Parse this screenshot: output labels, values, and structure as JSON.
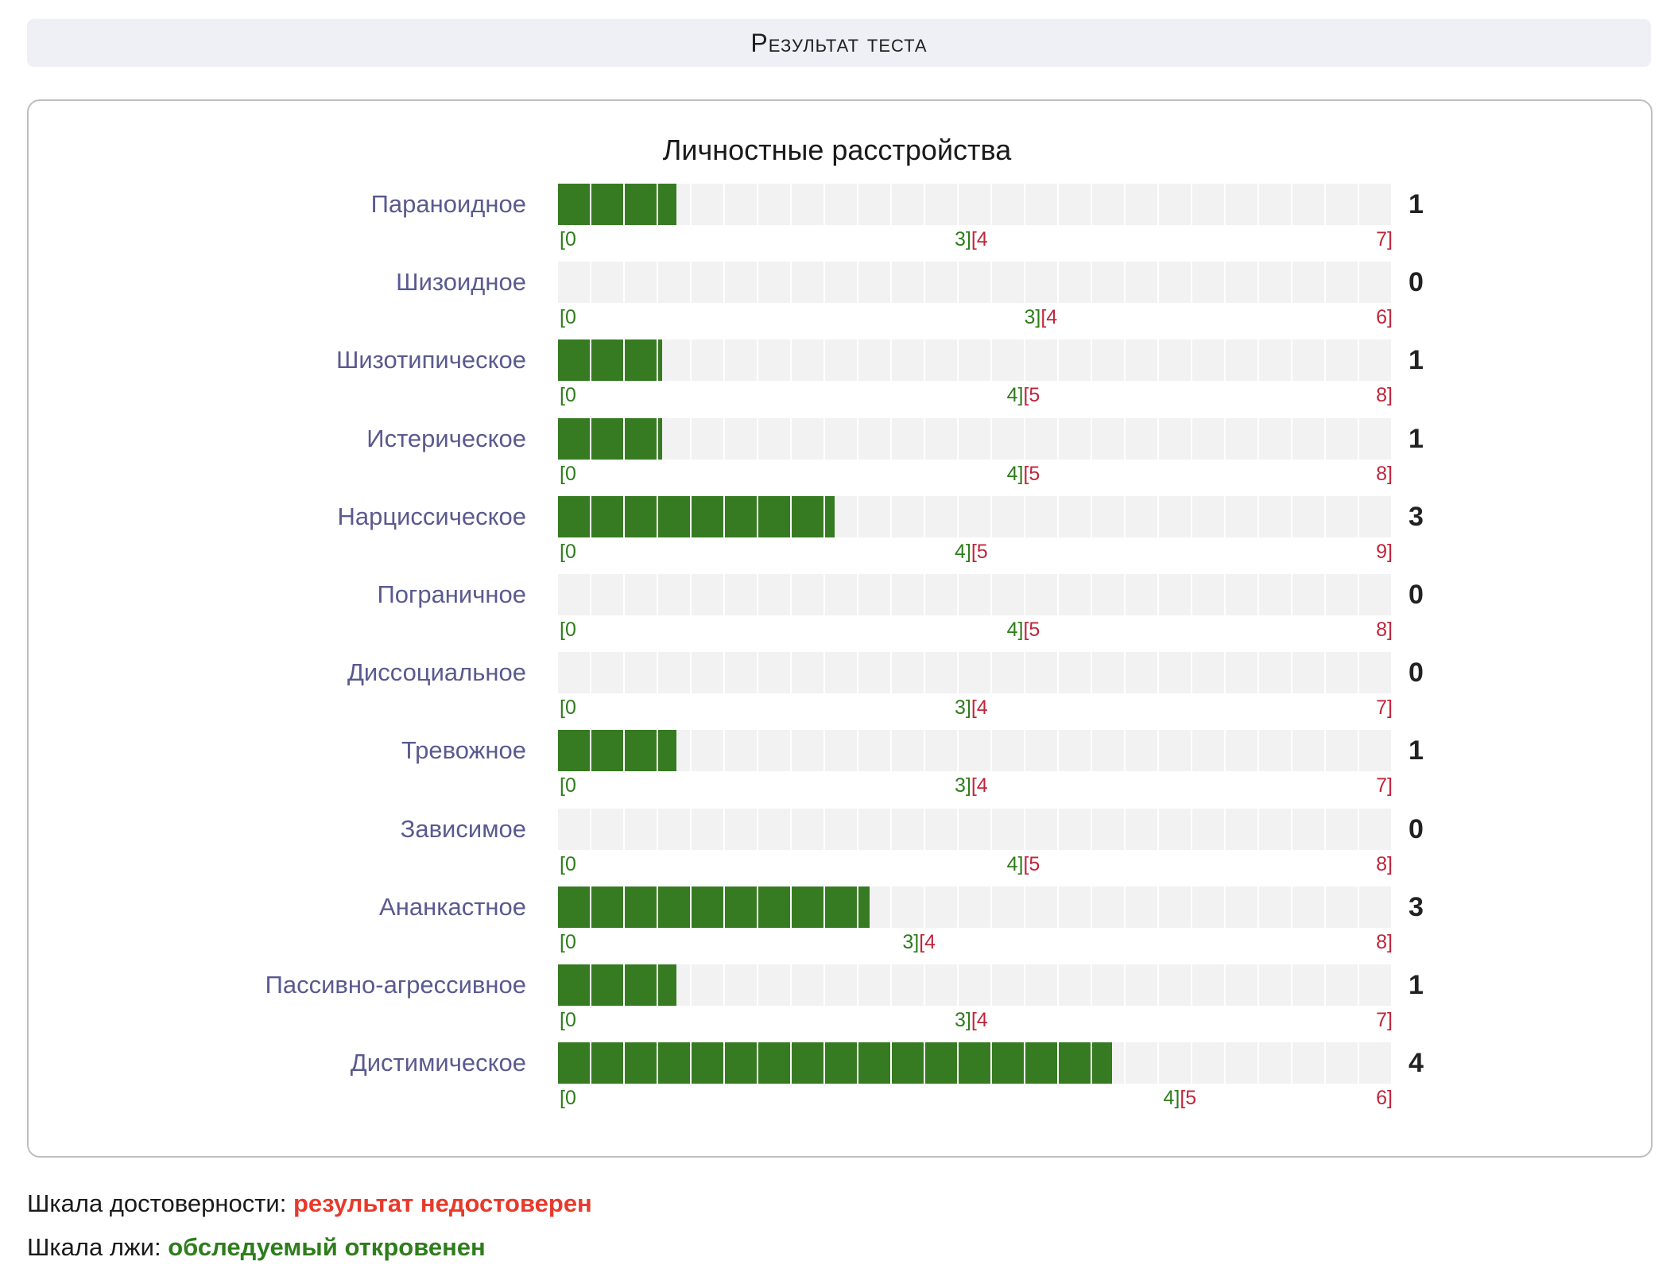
{
  "header": {
    "title": "Результат теста"
  },
  "chart_data": {
    "type": "bar",
    "title": "Личностные расстройства",
    "rows": [
      {
        "label": "Параноидное",
        "value": 1,
        "norm_min": 0,
        "norm_max": 3,
        "high_min": 4,
        "max": 7
      },
      {
        "label": "Шизоидное",
        "value": 0,
        "norm_min": 0,
        "norm_max": 3,
        "high_min": 4,
        "max": 6
      },
      {
        "label": "Шизотипическое",
        "value": 1,
        "norm_min": 0,
        "norm_max": 4,
        "high_min": 5,
        "max": 8
      },
      {
        "label": "Истерическое",
        "value": 1,
        "norm_min": 0,
        "norm_max": 4,
        "high_min": 5,
        "max": 8
      },
      {
        "label": "Нарциссическое",
        "value": 3,
        "norm_min": 0,
        "norm_max": 4,
        "high_min": 5,
        "max": 9
      },
      {
        "label": "Пограничное",
        "value": 0,
        "norm_min": 0,
        "norm_max": 4,
        "high_min": 5,
        "max": 8
      },
      {
        "label": "Диссоциальное",
        "value": 0,
        "norm_min": 0,
        "norm_max": 3,
        "high_min": 4,
        "max": 7
      },
      {
        "label": "Тревожное",
        "value": 1,
        "norm_min": 0,
        "norm_max": 3,
        "high_min": 4,
        "max": 7
      },
      {
        "label": "Зависимое",
        "value": 0,
        "norm_min": 0,
        "norm_max": 4,
        "high_min": 5,
        "max": 8
      },
      {
        "label": "Ананкастное",
        "value": 3,
        "norm_min": 0,
        "norm_max": 3,
        "high_min": 4,
        "max": 8
      },
      {
        "label": "Пассивно-агрессивное",
        "value": 1,
        "norm_min": 0,
        "norm_max": 3,
        "high_min": 4,
        "max": 7
      },
      {
        "label": "Дистимическое",
        "value": 4,
        "norm_min": 0,
        "norm_max": 4,
        "high_min": 5,
        "max": 6
      }
    ],
    "colors": {
      "fill": "#367b22",
      "track": "#f2f2f2",
      "norm_text": "#2e7d1c",
      "high_text": "#c0253b"
    }
  },
  "footer": {
    "reliability_label": "Шкала достоверности:",
    "reliability_value": "результат недостоверен",
    "reliability_color": "#e8392a",
    "lie_label": "Шкала лжи:",
    "lie_value": "обследуемый откровенен",
    "lie_color": "#2e7d1c"
  }
}
